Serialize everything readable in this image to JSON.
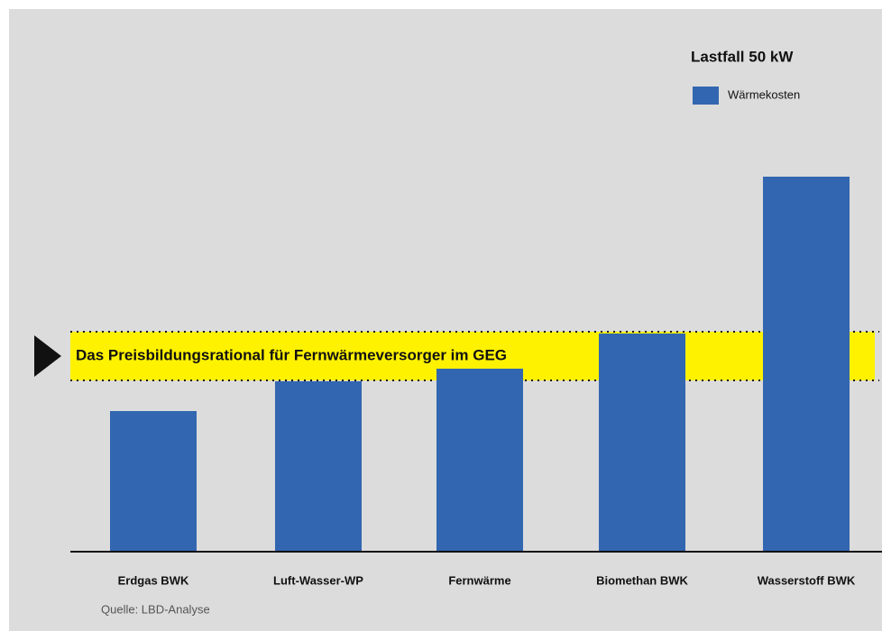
{
  "chart_data": {
    "type": "bar",
    "title": "Lastfall 50 kW",
    "categories": [
      "Erdgas BWK",
      "Luft-Wasser-WP",
      "Fernwärme",
      "Biomethan BWK",
      "Wasserstoff BWK"
    ],
    "series": [
      {
        "name": "Wärmekosten",
        "color": "#3266b0",
        "values": [
          156,
          189,
          203,
          242,
          416
        ]
      }
    ],
    "ylim": [
      0,
      450
    ],
    "band": {
      "label": "Das Preisbildungsrational für Fernwärmeversorger im GEG",
      "range": [
        190,
        244
      ],
      "color": "#fff200"
    },
    "source": "Quelle: LBD-Analyse"
  }
}
